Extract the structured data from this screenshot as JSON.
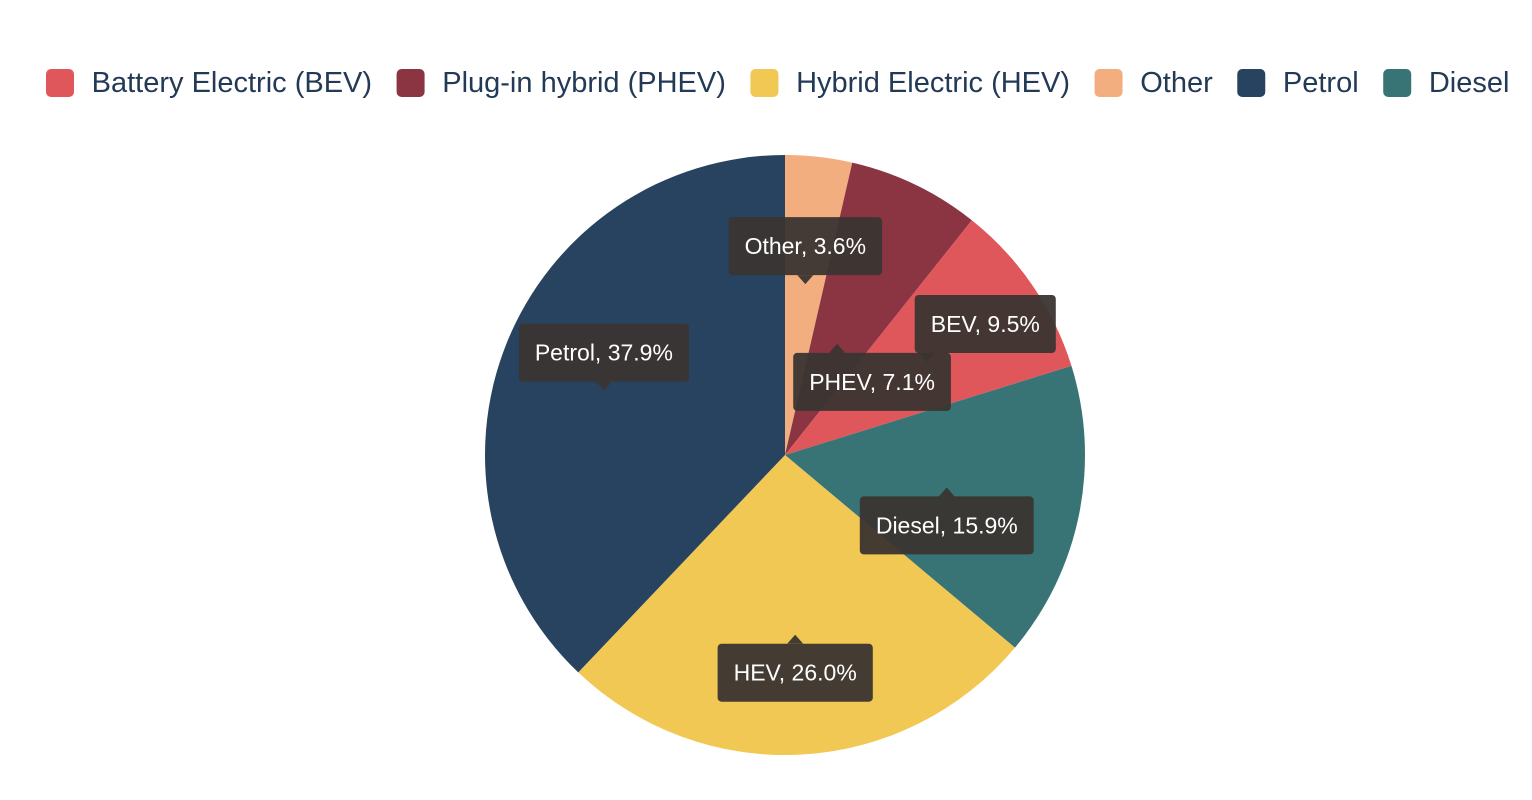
{
  "chart_data": {
    "type": "pie",
    "legend_position": "top",
    "series": [
      {
        "name": "Battery Electric (BEV)",
        "short": "BEV",
        "value": 9.5,
        "color": "#df575b"
      },
      {
        "name": "Plug-in hybrid (PHEV)",
        "short": "PHEV",
        "value": 7.1,
        "color": "#8b3442"
      },
      {
        "name": "Hybrid Electric (HEV)",
        "short": "HEV",
        "value": 26.0,
        "color": "#f1c853"
      },
      {
        "name": "Other",
        "short": "Other",
        "value": 3.6,
        "color": "#f3ae80"
      },
      {
        "name": "Petrol",
        "short": "Petrol",
        "value": 37.9,
        "color": "#27435f"
      },
      {
        "name": "Diesel",
        "short": "Diesel",
        "value": 15.9,
        "color": "#387475"
      }
    ],
    "slice_order": [
      "Other",
      "PHEV",
      "BEV",
      "Diesel",
      "HEV",
      "Petrol"
    ],
    "data_labels": [
      {
        "series": "Other",
        "text": "Other, 3.6%"
      },
      {
        "series": "PHEV",
        "text": "PHEV, 7.1%"
      },
      {
        "series": "BEV",
        "text": "BEV, 9.5%"
      },
      {
        "series": "Diesel",
        "text": "Diesel, 15.9%"
      },
      {
        "series": "HEV",
        "text": "HEV, 26.0%"
      },
      {
        "series": "Petrol",
        "text": "Petrol, 37.9%"
      }
    ],
    "label_box_color": "#3a3531",
    "legend_text_color": "#233a56"
  }
}
